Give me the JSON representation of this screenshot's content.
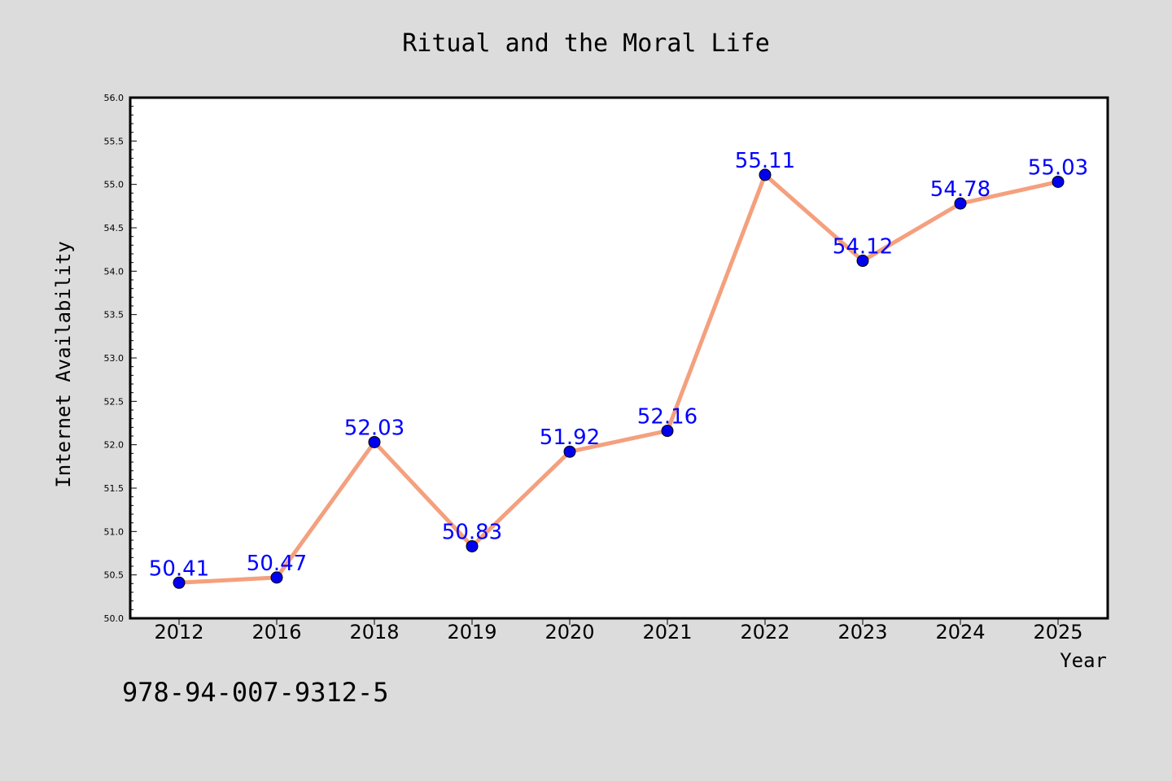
{
  "chart_data": {
    "type": "line",
    "title": "Ritual and the Moral Life",
    "xlabel": "Year",
    "ylabel": "Internet Availability",
    "categories": [
      "2012",
      "2016",
      "2018",
      "2019",
      "2020",
      "2021",
      "2022",
      "2023",
      "2024",
      "2025"
    ],
    "values": [
      50.41,
      50.47,
      52.03,
      50.83,
      51.92,
      52.16,
      55.11,
      54.12,
      54.78,
      55.03
    ],
    "data_labels": [
      "50.41",
      "50.47",
      "52.03",
      "50.83",
      "51.92",
      "52.16",
      "55.11",
      "54.12",
      "54.78",
      "55.03"
    ],
    "ylim": [
      50.0,
      56.0
    ],
    "yticks": [
      "50.0",
      "50.5",
      "51.0",
      "51.5",
      "52.0",
      "52.5",
      "53.0",
      "53.5",
      "54.0",
      "54.5",
      "55.0",
      "55.5",
      "56.0"
    ],
    "grid": false,
    "legend": "none",
    "colors": {
      "line": "#f4a07e",
      "marker": "#0000ee",
      "label": "#0000ff",
      "background": "#dcdcdc",
      "plot_background": "#ffffff"
    }
  },
  "footer": {
    "isbn": "978-94-007-9312-5"
  }
}
